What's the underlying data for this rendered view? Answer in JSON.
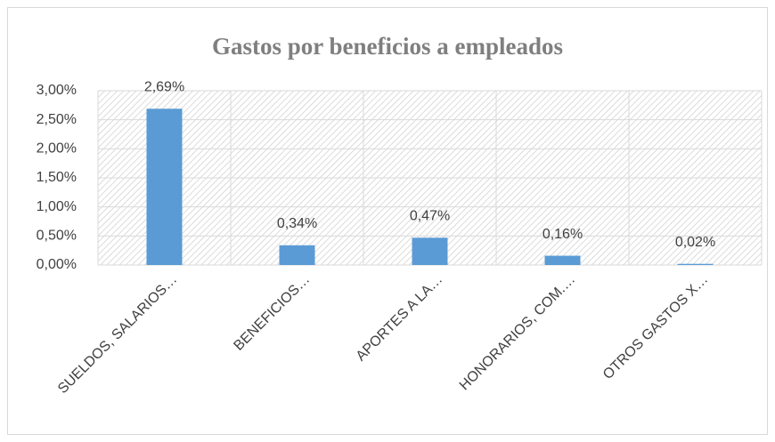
{
  "chart_data": {
    "type": "bar",
    "title": "Gastos por beneficios a empleados",
    "categories": [
      "SUELDOS, SALARIOS…",
      "BENEFICIOS…",
      "APORTES A LA…",
      "HONORARIOS, COM.…",
      "OTROS GASTOS X…"
    ],
    "values": [
      2.69,
      0.34,
      0.47,
      0.16,
      0.02
    ],
    "value_labels": [
      "2,69%",
      "0,34%",
      "0,47%",
      "0,16%",
      "0,02%"
    ],
    "color": "#5b9bd5",
    "ylim": [
      0,
      3
    ],
    "yticks": [
      {
        "value": 0,
        "label": "0,00%"
      },
      {
        "value": 0.5,
        "label": "0,50%"
      },
      {
        "value": 1,
        "label": "1,00%"
      },
      {
        "value": 1.5,
        "label": "1,50%"
      },
      {
        "value": 2,
        "label": "2,00%"
      },
      {
        "value": 2.5,
        "label": "2,50%"
      },
      {
        "value": 3,
        "label": "3,00%"
      }
    ],
    "grid": true
  }
}
